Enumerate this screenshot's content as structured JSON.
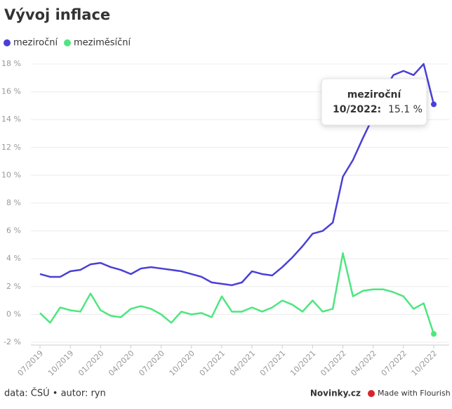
{
  "chart_data": {
    "type": "line",
    "title": "Vývoj inflace",
    "categories": [
      "07/2019",
      null,
      null,
      "10/2019",
      null,
      null,
      "01/2020",
      null,
      null,
      "04/2020",
      null,
      null,
      "07/2020",
      null,
      null,
      "10/2020",
      null,
      null,
      "01/2021",
      null,
      null,
      "04/2021",
      null,
      null,
      "07/2021",
      null,
      null,
      "10/2021",
      null,
      null,
      "01/2022",
      null,
      null,
      "04/2022",
      null,
      null,
      "07/2022",
      null,
      null,
      "10/2022"
    ],
    "series": [
      {
        "name": "meziroční",
        "color": "#4a3fd6",
        "values": [
          2.9,
          2.7,
          2.7,
          3.1,
          3.2,
          3.6,
          3.7,
          3.4,
          3.2,
          2.9,
          3.3,
          3.4,
          3.3,
          3.2,
          3.1,
          2.9,
          2.7,
          2.3,
          2.2,
          2.1,
          2.3,
          3.1,
          2.9,
          2.8,
          3.4,
          4.1,
          4.9,
          5.8,
          6.0,
          6.6,
          9.9,
          11.1,
          12.7,
          14.2,
          16.0,
          17.2,
          17.5,
          17.2,
          18.0,
          15.1
        ],
        "value_labels": [
          null,
          null,
          null,
          null,
          null,
          null,
          null,
          null,
          null,
          null,
          null,
          null,
          null,
          null,
          null,
          null,
          null,
          null,
          null,
          null,
          null,
          null,
          null,
          null,
          null,
          null,
          null,
          null,
          null,
          null,
          null,
          null,
          null,
          null,
          null,
          null,
          null,
          null,
          null,
          "15.1 %"
        ]
      },
      {
        "name": "meziměsíční",
        "color": "#4ee67f",
        "values": [
          0.1,
          -0.6,
          0.5,
          0.3,
          0.2,
          1.5,
          0.3,
          -0.1,
          -0.2,
          0.4,
          0.6,
          0.4,
          0.0,
          -0.6,
          0.2,
          0.0,
          0.1,
          -0.2,
          1.3,
          0.2,
          0.2,
          0.5,
          0.2,
          0.5,
          1.0,
          0.7,
          0.2,
          1.0,
          0.2,
          0.4,
          4.4,
          1.3,
          1.7,
          1.8,
          1.8,
          1.6,
          1.3,
          0.4,
          0.8,
          -1.4
        ]
      }
    ],
    "ylim": [
      -2,
      18
    ],
    "yticks": [
      {
        "value": -2,
        "label": "-2 %"
      },
      {
        "value": 0,
        "label": "0 %"
      },
      {
        "value": 2,
        "label": "2 %"
      },
      {
        "value": 4,
        "label": "4 %"
      },
      {
        "value": 6,
        "label": "6 %"
      },
      {
        "value": 8,
        "label": "8 %"
      },
      {
        "value": 10,
        "label": "10 %"
      },
      {
        "value": 12,
        "label": "12 %"
      },
      {
        "value": 14,
        "label": "14 %"
      },
      {
        "value": 16,
        "label": "16 %"
      },
      {
        "value": 18,
        "label": "18 %"
      }
    ],
    "grid": true,
    "legend": "top-left",
    "tooltip": {
      "label": "10/2022:"
    },
    "footer": {
      "source": "data: ČSÚ • autor: ryn",
      "brand": "Novinky.cz",
      "credit": "Made with Flourish"
    }
  }
}
